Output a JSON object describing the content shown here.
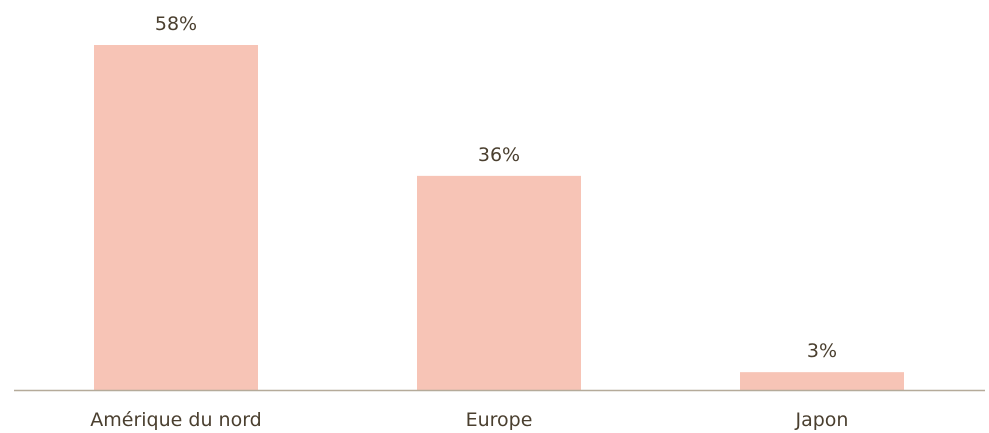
{
  "chart_data": {
    "type": "bar",
    "categories": [
      "Amérique du nord",
      "Europe",
      "Japon"
    ],
    "values": [
      58,
      36,
      3
    ],
    "value_labels": [
      "58%",
      "36%",
      "3%"
    ],
    "unit": "%",
    "ylim": [
      0,
      58
    ],
    "grid": false,
    "legend": "none",
    "colors": {
      "bar": "#f7c4b6",
      "axis": "#b5ab9a",
      "text": "#4a3f2f"
    }
  }
}
